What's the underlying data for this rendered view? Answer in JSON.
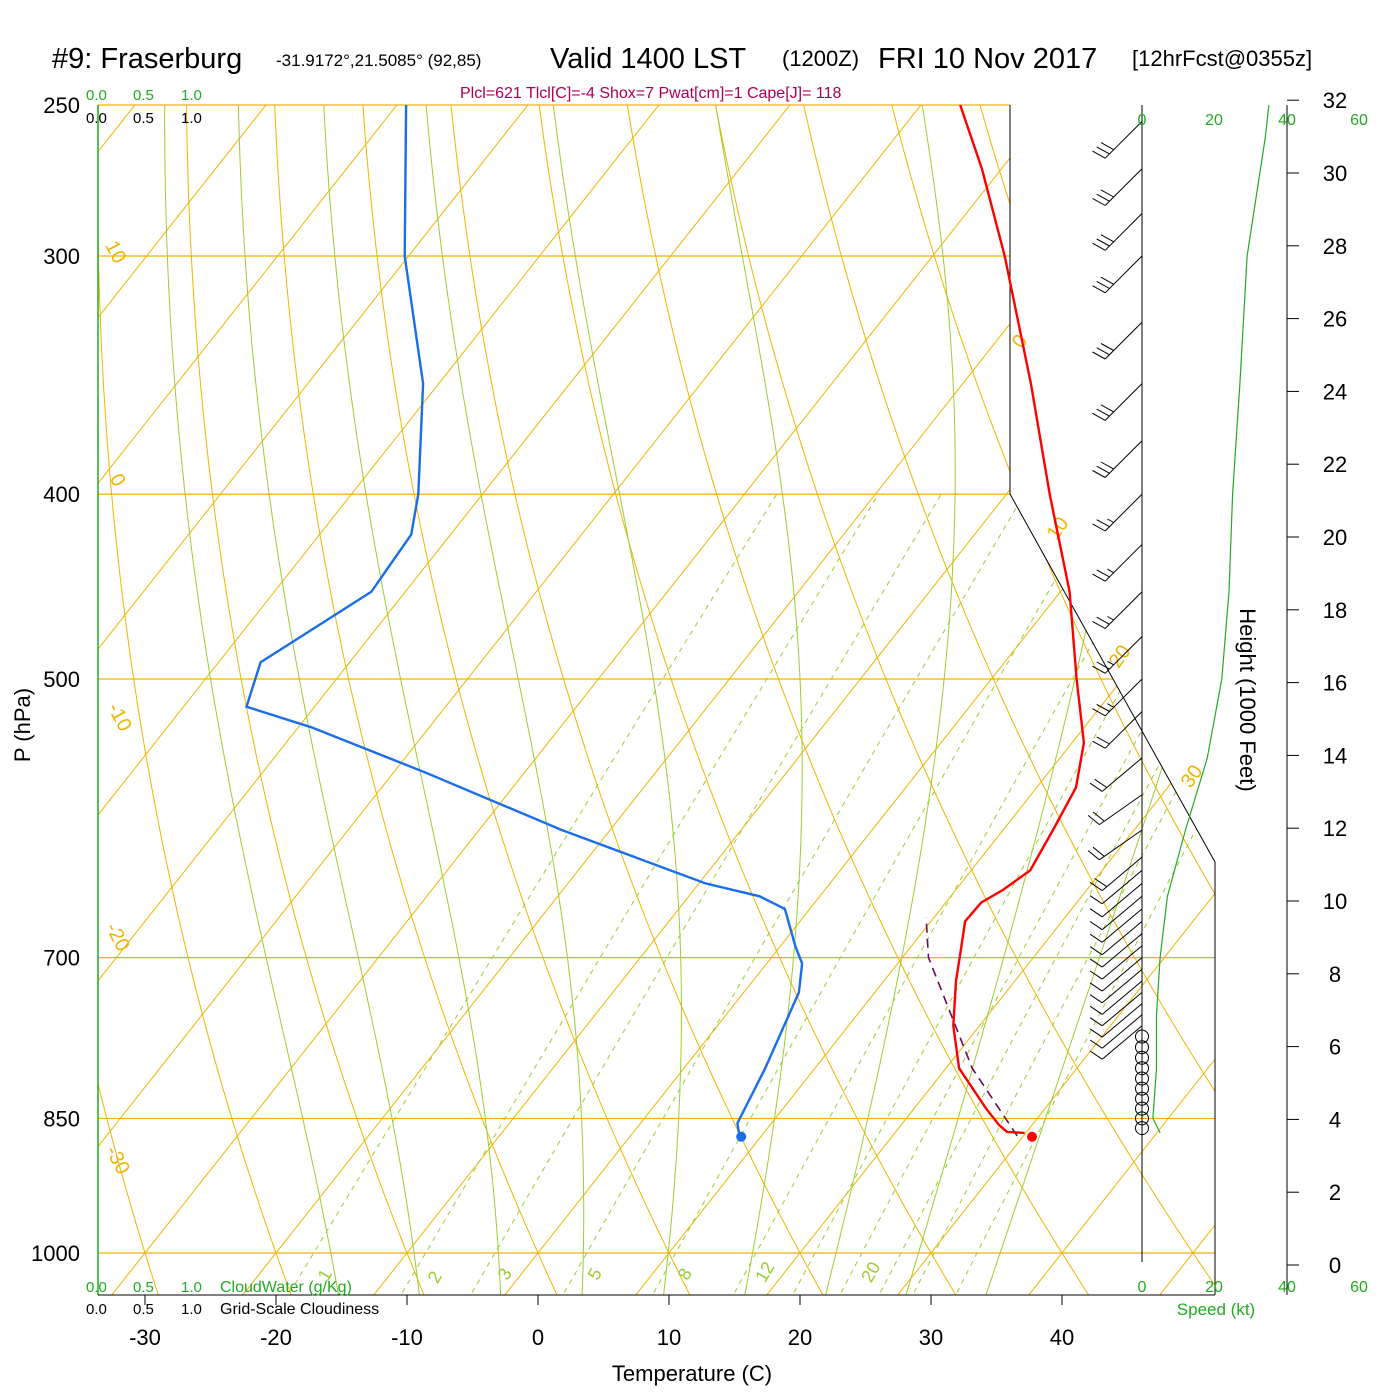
{
  "header": {
    "station": "#9: Fraserburg",
    "coords": "-31.9172°,21.5085° (92,85)",
    "valid": "Valid 1400 LST",
    "zulu": "(1200Z)",
    "date": "FRI 10 Nov 2017",
    "forecast": "[12hrFcst@0355z]",
    "params": "Plcl=621 Tlcl[C]=-4 Shox=7 Pwat[cm]=1 Cape[J]= 118"
  },
  "scales": {
    "cloud_ticks": [
      "0.0",
      "0.5",
      "1.0"
    ],
    "cloudwater_label": "CloudWater (g/Kg)",
    "cloudiness_label": "Grid-Scale Cloudiness",
    "speed_ticks": [
      "0",
      "20",
      "40",
      "60"
    ],
    "speed_label": "Speed (kt)"
  },
  "colors": {
    "isotherm": "#f0b400",
    "dry_adiabat": "#f0b400",
    "moist_adiabat": "#9acd32",
    "mixing_ratio": "#9acd32",
    "temperature": "#ff0000",
    "dewpoint": "#1a6ee8",
    "parcel": "#6a0a5a",
    "wind_speed": "#22aa22",
    "label_green": "#22aa22",
    "params_text": "#aa0055"
  },
  "chart_data": {
    "type": "skew-t",
    "xlabel": "Temperature (C)",
    "ylabel": "P (hPa)",
    "y2label": "Height (1000 Feet)",
    "x_ticks": [
      -30,
      -20,
      -10,
      0,
      10,
      20,
      30,
      40
    ],
    "pressure_ticks": [
      250,
      300,
      400,
      500,
      700,
      850,
      1000
    ],
    "height_ticks": [
      0,
      2,
      4,
      6,
      8,
      10,
      12,
      14,
      16,
      18,
      20,
      22,
      24,
      26,
      28,
      30,
      32
    ],
    "dry_adiabat_labels": [
      "10",
      "0",
      "-10",
      "-20",
      "-30",
      "0",
      "10",
      "20",
      "30"
    ],
    "mixing_ratio_labels": [
      "1",
      "2",
      "3",
      "5",
      "8",
      "12",
      "20"
    ],
    "surface": {
      "pressure": 869,
      "temperature": 30.7,
      "dewpoint": 8.5
    },
    "temperature": [
      [
        865,
        29.9
      ],
      [
        864,
        28.5
      ],
      [
        857,
        27.5
      ],
      [
        840,
        25.5
      ],
      [
        800,
        21.0
      ],
      [
        760,
        18.0
      ],
      [
        720,
        15.5
      ],
      [
        690,
        13.8
      ],
      [
        670,
        12.6
      ],
      [
        655,
        12.7
      ],
      [
        645,
        13.6
      ],
      [
        630,
        14.5
      ],
      [
        600,
        13.8
      ],
      [
        570,
        13.0
      ],
      [
        540,
        10.9
      ],
      [
        500,
        6.5
      ],
      [
        450,
        0.7
      ],
      [
        400,
        -6.7
      ],
      [
        350,
        -14.8
      ],
      [
        300,
        -24.5
      ],
      [
        270,
        -31.5
      ],
      [
        250,
        -37.0
      ]
    ],
    "dewpoint": [
      [
        865,
        8.1
      ],
      [
        855,
        7.4
      ],
      [
        800,
        6.2
      ],
      [
        730,
        4.2
      ],
      [
        705,
        2.7
      ],
      [
        690,
        1.1
      ],
      [
        660,
        -1.9
      ],
      [
        650,
        -4.6
      ],
      [
        640,
        -9.5
      ],
      [
        600,
        -23.7
      ],
      [
        560,
        -37.5
      ],
      [
        530,
        -49.0
      ],
      [
        517,
        -55.2
      ],
      [
        490,
        -56.8
      ],
      [
        450,
        -52.6
      ],
      [
        420,
        -53.0
      ],
      [
        400,
        -54.9
      ],
      [
        350,
        -61.2
      ],
      [
        300,
        -70.3
      ],
      [
        250,
        -79.3
      ]
    ],
    "parcel": [
      [
        868,
        29.5
      ],
      [
        800,
        22.0
      ],
      [
        700,
        12.0
      ],
      [
        667,
        9.4
      ]
    ],
    "wind_speed_profile": [
      [
        865,
        5
      ],
      [
        850,
        3
      ],
      [
        800,
        4
      ],
      [
        750,
        4
      ],
      [
        700,
        5
      ],
      [
        650,
        7
      ],
      [
        600,
        12
      ],
      [
        550,
        18
      ],
      [
        500,
        22
      ],
      [
        450,
        24
      ],
      [
        400,
        25
      ],
      [
        350,
        27
      ],
      [
        300,
        29
      ],
      [
        260,
        34
      ],
      [
        250,
        35
      ]
    ],
    "wind_barbs_pressure": [
      860,
      850,
      840,
      830,
      820,
      810,
      800,
      790,
      780,
      770,
      760,
      750,
      740,
      730,
      720,
      710,
      700,
      690,
      680,
      670,
      660,
      650,
      640,
      630,
      620,
      600,
      575,
      550,
      520,
      500,
      475,
      450,
      425,
      400,
      375,
      350,
      325,
      300,
      285,
      270,
      255
    ],
    "wind_barbs_direction": [
      240,
      240,
      240,
      240,
      240,
      240,
      240,
      240,
      220,
      220,
      230,
      230,
      230,
      230,
      230,
      230,
      230,
      230,
      230,
      230,
      230,
      230,
      230,
      230,
      230,
      235,
      235,
      230,
      225,
      225,
      225,
      225,
      225,
      225,
      225,
      225,
      225,
      225,
      225,
      225,
      225
    ],
    "wind_barbs_speed": [
      0,
      0,
      0,
      0,
      0,
      0,
      0,
      0,
      0,
      0,
      10,
      10,
      10,
      10,
      10,
      10,
      10,
      10,
      10,
      10,
      10,
      10,
      10,
      10,
      20,
      20,
      20,
      20,
      20,
      25,
      25,
      25,
      25,
      25,
      30,
      30,
      30,
      30,
      30,
      30,
      30
    ]
  }
}
